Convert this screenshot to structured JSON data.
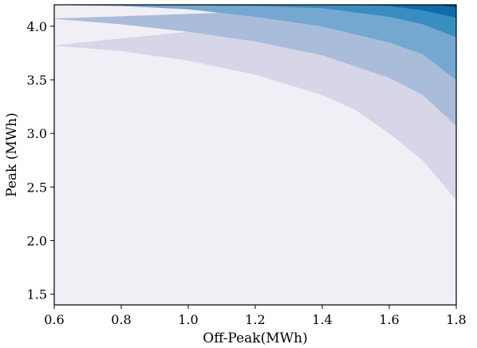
{
  "chart_data": {
    "type": "contourf",
    "title": "",
    "xlabel": "Off-Peak(MWh)",
    "ylabel": "Peak (MWh)",
    "xlim": [
      0.6,
      1.8
    ],
    "ylim": [
      1.4,
      4.2
    ],
    "x_ticks": [
      0.6,
      0.8,
      1.0,
      1.2,
      1.4,
      1.6,
      1.8
    ],
    "x_tick_labels": [
      "0.6",
      "0.8",
      "1.0",
      "1.2",
      "1.4",
      "1.6",
      "1.8"
    ],
    "y_ticks": [
      1.5,
      2.0,
      2.5,
      3.0,
      3.5,
      4.0
    ],
    "y_tick_labels": [
      "1.5",
      "2.0",
      "2.5",
      "3.0",
      "3.5",
      "4.0"
    ],
    "grid": false,
    "legend": "none",
    "colormap": "PuBu",
    "level_colors": [
      "#f1eef6",
      "#d7d6e9",
      "#a9bddb",
      "#75a8d0",
      "#3a8dc1",
      "#0f6cac",
      "#0a3f66"
    ],
    "level_boundaries": [
      {
        "name": "boundary-1",
        "points": [
          [
            0.6,
            3.82
          ],
          [
            0.8,
            3.77
          ],
          [
            1.0,
            3.68
          ],
          [
            1.2,
            3.55
          ],
          [
            1.4,
            3.36
          ],
          [
            1.5,
            3.22
          ],
          [
            1.6,
            3.0
          ],
          [
            1.7,
            2.75
          ],
          [
            1.8,
            2.38
          ]
        ]
      },
      {
        "name": "boundary-2",
        "points": [
          [
            0.6,
            4.07
          ],
          [
            0.8,
            4.02
          ],
          [
            1.0,
            3.95
          ],
          [
            1.2,
            3.86
          ],
          [
            1.4,
            3.73
          ],
          [
            1.6,
            3.52
          ],
          [
            1.7,
            3.36
          ],
          [
            1.8,
            3.07
          ]
        ]
      },
      {
        "name": "boundary-3",
        "points": [
          [
            0.6,
            4.2
          ],
          [
            0.8,
            4.19
          ],
          [
            1.0,
            4.16
          ],
          [
            1.2,
            4.09
          ],
          [
            1.4,
            4.0
          ],
          [
            1.6,
            3.85
          ],
          [
            1.7,
            3.74
          ],
          [
            1.8,
            3.5
          ]
        ]
      },
      {
        "name": "boundary-4",
        "points": [
          [
            0.9,
            4.2
          ],
          [
            1.2,
            4.19
          ],
          [
            1.4,
            4.17
          ],
          [
            1.6,
            4.09
          ],
          [
            1.7,
            4.02
          ],
          [
            1.8,
            3.9
          ]
        ]
      },
      {
        "name": "boundary-5",
        "points": [
          [
            1.31,
            4.2
          ],
          [
            1.5,
            4.2
          ],
          [
            1.6,
            4.19
          ],
          [
            1.7,
            4.15
          ],
          [
            1.8,
            4.08
          ]
        ]
      },
      {
        "name": "boundary-6",
        "points": [
          [
            1.7,
            4.2
          ],
          [
            1.75,
            4.2
          ],
          [
            1.8,
            4.18
          ]
        ]
      }
    ]
  }
}
